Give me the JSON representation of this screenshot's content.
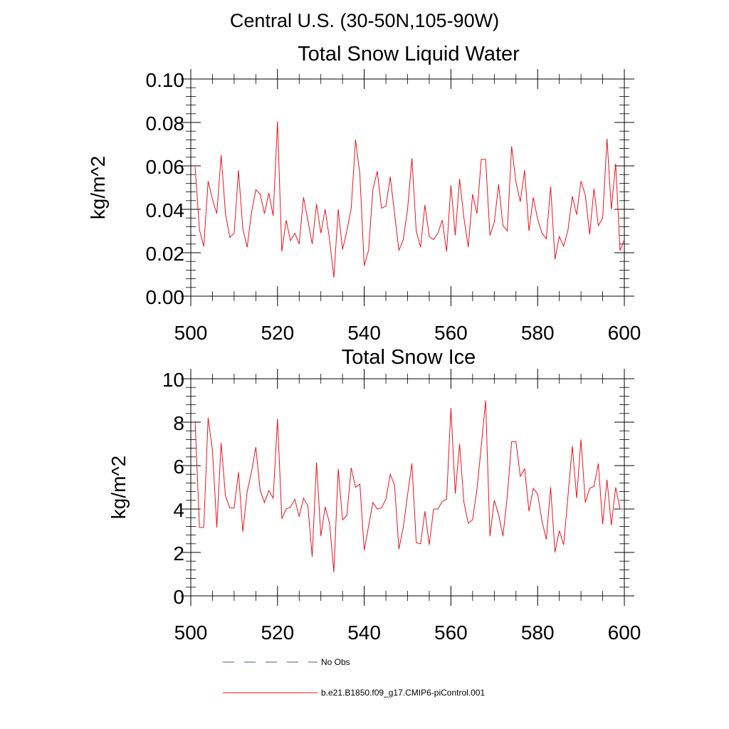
{
  "figure": {
    "suptitle": "Central U.S. (30-50N,105-90W)"
  },
  "chart_data": [
    {
      "type": "line",
      "title": "Total Snow Liquid Water",
      "xlabel": "",
      "ylabel": "kg/m^2",
      "xlim": [
        500,
        600
      ],
      "ylim": [
        0,
        0.1
      ],
      "xticks": [
        500,
        520,
        540,
        560,
        580,
        600
      ],
      "yticks": [
        0.0,
        0.02,
        0.04,
        0.06,
        0.08,
        0.1
      ],
      "xtick_labels": [
        "500",
        "520",
        "540",
        "560",
        "580",
        "600"
      ],
      "ytick_labels": [
        "0.00",
        "0.02",
        "0.04",
        "0.06",
        "0.08",
        "0.10"
      ],
      "series": [
        {
          "name": "b.e21.B1850.f09_g17.CMIP6-piControl.001",
          "color": "#e8141e",
          "x_start": 501,
          "values": [
            0.0595,
            0.0305,
            0.023,
            0.053,
            0.0445,
            0.038,
            0.065,
            0.038,
            0.027,
            0.029,
            0.058,
            0.031,
            0.0225,
            0.0385,
            0.049,
            0.047,
            0.038,
            0.0475,
            0.037,
            0.0805,
            0.0205,
            0.035,
            0.0255,
            0.029,
            0.024,
            0.0455,
            0.035,
            0.024,
            0.0425,
            0.029,
            0.04,
            0.026,
            0.0085,
            0.04,
            0.0215,
            0.03,
            0.0405,
            0.072,
            0.056,
            0.014,
            0.021,
            0.049,
            0.0575,
            0.0405,
            0.0415,
            0.055,
            0.038,
            0.021,
            0.026,
            0.04,
            0.0635,
            0.03,
            0.0225,
            0.042,
            0.0275,
            0.026,
            0.029,
            0.035,
            0.0205,
            0.051,
            0.028,
            0.054,
            0.036,
            0.0225,
            0.047,
            0.038,
            0.063,
            0.063,
            0.028,
            0.034,
            0.0515,
            0.0325,
            0.03,
            0.069,
            0.0525,
            0.0435,
            0.058,
            0.03,
            0.0455,
            0.0355,
            0.029,
            0.0265,
            0.0505,
            0.017,
            0.0275,
            0.023,
            0.0305,
            0.046,
            0.0375,
            0.053,
            0.0465,
            0.0285,
            0.0495,
            0.0325,
            0.036,
            0.0725,
            0.04,
            0.061,
            0.021,
            0.026
          ]
        }
      ]
    },
    {
      "type": "line",
      "title": "Total Snow Ice",
      "xlabel": "",
      "ylabel": "kg/m^2",
      "xlim": [
        500,
        600
      ],
      "ylim": [
        0,
        10
      ],
      "xticks": [
        500,
        520,
        540,
        560,
        580,
        600
      ],
      "yticks": [
        0,
        2,
        4,
        6,
        8,
        10
      ],
      "xtick_labels": [
        "500",
        "520",
        "540",
        "560",
        "580",
        "600"
      ],
      "ytick_labels": [
        "0",
        "2",
        "4",
        "6",
        "8",
        "10"
      ],
      "series": [
        {
          "name": "b.e21.B1850.f09_g17.CMIP6-piControl.001",
          "color": "#e8141e",
          "x_start": 501,
          "values": [
            8.05,
            3.15,
            3.15,
            8.2,
            6.7,
            3.15,
            7.05,
            4.6,
            4.05,
            4.05,
            5.7,
            2.95,
            4.8,
            5.7,
            6.85,
            4.85,
            4.3,
            4.85,
            4.5,
            8.15,
            3.55,
            4.0,
            4.1,
            4.45,
            3.65,
            4.5,
            4.15,
            1.8,
            6.15,
            2.75,
            4.1,
            3.35,
            1.1,
            5.85,
            3.5,
            3.7,
            5.9,
            5.0,
            5.15,
            2.1,
            3.2,
            4.3,
            4.0,
            4.05,
            4.45,
            5.6,
            5.1,
            2.15,
            3.15,
            4.65,
            6.1,
            2.45,
            2.4,
            3.9,
            2.35,
            4.0,
            4.0,
            4.35,
            4.45,
            8.65,
            4.7,
            7.0,
            4.3,
            3.35,
            3.5,
            4.9,
            6.9,
            9.0,
            2.75,
            4.4,
            3.75,
            2.75,
            4.6,
            7.1,
            7.1,
            5.5,
            5.85,
            3.9,
            4.95,
            4.7,
            3.45,
            2.6,
            5.0,
            2.0,
            3.0,
            2.35,
            4.6,
            6.9,
            4.5,
            7.2,
            4.3,
            4.95,
            5.05,
            6.1,
            3.3,
            5.35,
            3.25,
            5.0,
            4.0,
            4.0
          ]
        }
      ]
    }
  ],
  "legend": {
    "items": [
      {
        "label": "No Obs",
        "style": "dashed",
        "color": "#4a5a8a"
      },
      {
        "label": "b.e21.B1850.f09_g17.CMIP6-piControl.001",
        "style": "solid",
        "color": "#e8141e"
      }
    ]
  }
}
